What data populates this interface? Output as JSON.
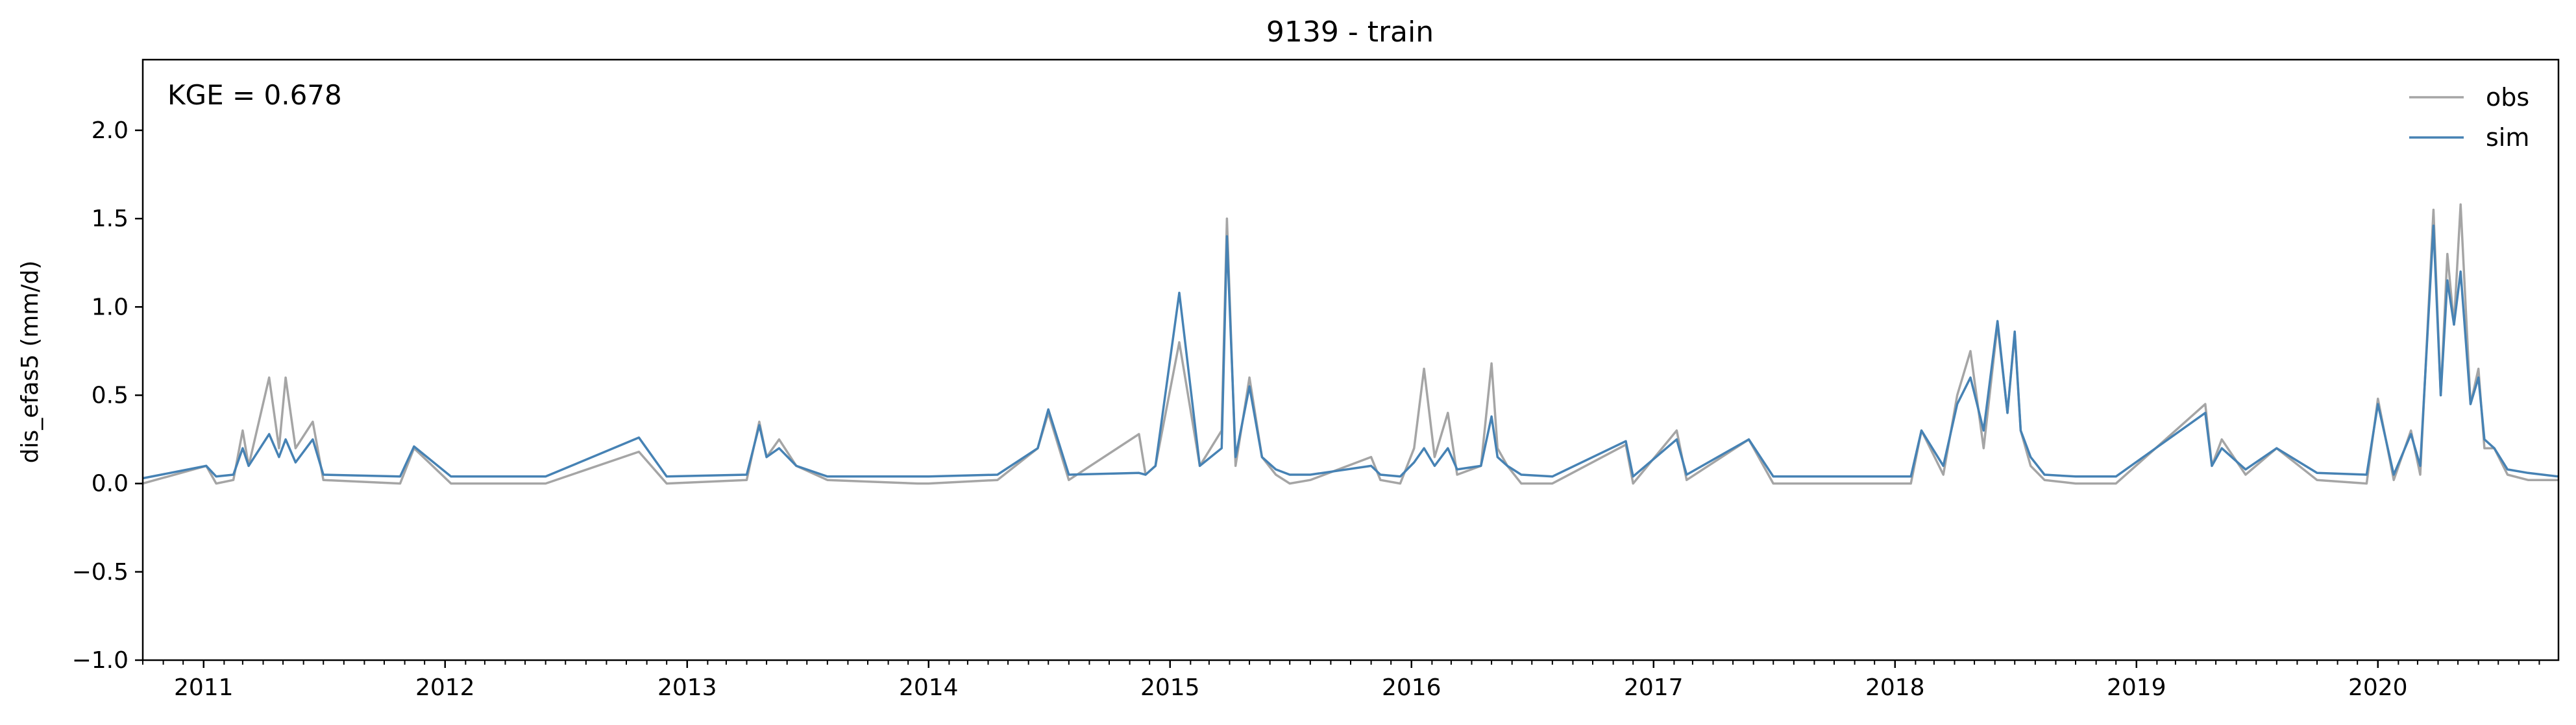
{
  "chart_data": {
    "type": "line",
    "title": "9139 - train",
    "xlabel": "",
    "ylabel": "dis_efas5 (mm/d)",
    "xlim": [
      "2010-10-01",
      "2020-09-30"
    ],
    "ylim": [
      -1.0,
      2.4
    ],
    "yticks": [
      -1.0,
      -0.5,
      0.0,
      0.5,
      1.0,
      1.5,
      2.0
    ],
    "ytick_labels": [
      "−1.0",
      "−0.5",
      "0.0",
      "0.5",
      "1.0",
      "1.5",
      "2.0"
    ],
    "xticks": [
      "2011-01-01",
      "2012-01-01",
      "2013-01-01",
      "2014-01-01",
      "2015-01-01",
      "2016-01-01",
      "2017-01-01",
      "2018-01-01",
      "2019-01-01",
      "2020-01-01"
    ],
    "xtick_labels": [
      "2011",
      "2012",
      "2013",
      "2014",
      "2015",
      "2016",
      "2017",
      "2018",
      "2019",
      "2020"
    ],
    "grid": false,
    "legend_position": "top-right",
    "annotation": "KGE = 0.678",
    "series": [
      {
        "name": "obs",
        "color": "#a5a5a5",
        "x": [
          "2010-10-01",
          "2011-01-05",
          "2011-01-20",
          "2011-02-15",
          "2011-03-01",
          "2011-03-10",
          "2011-04-10",
          "2011-04-25",
          "2011-05-05",
          "2011-05-20",
          "2011-06-15",
          "2011-07-01",
          "2011-10-25",
          "2011-11-15",
          "2012-01-10",
          "2012-06-01",
          "2012-10-20",
          "2012-12-01",
          "2013-04-01",
          "2013-04-20",
          "2013-05-01",
          "2013-05-20",
          "2013-06-15",
          "2013-08-01",
          "2013-12-15",
          "2014-01-01",
          "2014-04-15",
          "2014-06-15",
          "2014-07-01",
          "2014-08-01",
          "2014-11-15",
          "2014-11-25",
          "2014-12-10",
          "2015-01-15",
          "2015-02-15",
          "2015-03-20",
          "2015-03-28",
          "2015-04-10",
          "2015-05-01",
          "2015-05-20",
          "2015-06-10",
          "2015-07-01",
          "2015-08-01",
          "2015-11-01",
          "2015-11-15",
          "2015-12-15",
          "2016-01-05",
          "2016-01-20",
          "2016-02-05",
          "2016-02-25",
          "2016-03-10",
          "2016-04-15",
          "2016-05-01",
          "2016-05-10",
          "2016-05-25",
          "2016-06-15",
          "2016-08-01",
          "2016-11-20",
          "2016-12-01",
          "2017-02-05",
          "2017-02-20",
          "2017-05-25",
          "2017-07-01",
          "2017-09-01",
          "2017-12-01",
          "2018-01-25",
          "2018-02-10",
          "2018-03-15",
          "2018-04-05",
          "2018-04-25",
          "2018-05-15",
          "2018-06-05",
          "2018-06-20",
          "2018-07-01",
          "2018-07-10",
          "2018-07-25",
          "2018-08-15",
          "2018-10-01",
          "2018-12-01",
          "2019-04-15",
          "2019-04-25",
          "2019-05-10",
          "2019-06-15",
          "2019-08-01",
          "2019-10-01",
          "2019-12-15",
          "2020-01-01",
          "2020-01-25",
          "2020-02-20",
          "2020-03-05",
          "2020-03-25",
          "2020-04-05",
          "2020-04-15",
          "2020-04-25",
          "2020-05-05",
          "2020-05-20",
          "2020-06-01",
          "2020-06-10",
          "2020-06-25",
          "2020-07-15",
          "2020-08-15",
          "2020-09-30"
        ],
        "values": [
          0.0,
          0.1,
          0.0,
          0.02,
          0.3,
          0.1,
          0.6,
          0.2,
          0.6,
          0.2,
          0.35,
          0.02,
          0.0,
          0.2,
          0.0,
          0.0,
          0.18,
          0.0,
          0.02,
          0.35,
          0.15,
          0.25,
          0.1,
          0.02,
          0.0,
          0.0,
          0.02,
          0.2,
          0.4,
          0.02,
          0.28,
          0.05,
          0.1,
          0.8,
          0.1,
          0.3,
          1.5,
          0.1,
          0.6,
          0.15,
          0.05,
          0.0,
          0.02,
          0.15,
          0.02,
          0.0,
          0.2,
          0.65,
          0.15,
          0.4,
          0.05,
          0.1,
          0.68,
          0.2,
          0.1,
          0.0,
          0.0,
          0.22,
          0.0,
          0.3,
          0.02,
          0.25,
          0.0,
          0.0,
          0.0,
          0.0,
          0.3,
          0.05,
          0.5,
          0.75,
          0.2,
          0.9,
          0.4,
          0.85,
          0.3,
          0.1,
          0.02,
          0.0,
          0.0,
          0.45,
          0.1,
          0.25,
          0.05,
          0.2,
          0.02,
          0.0,
          0.48,
          0.02,
          0.3,
          0.05,
          1.55,
          0.5,
          1.3,
          0.9,
          1.58,
          0.45,
          0.65,
          0.2,
          0.2,
          0.05,
          0.02,
          0.02
        ]
      },
      {
        "name": "sim",
        "color": "#4682b4",
        "x": [
          "2010-10-01",
          "2011-01-05",
          "2011-01-20",
          "2011-02-15",
          "2011-03-01",
          "2011-03-10",
          "2011-04-10",
          "2011-04-25",
          "2011-05-05",
          "2011-05-20",
          "2011-06-15",
          "2011-07-01",
          "2011-10-25",
          "2011-11-15",
          "2012-01-10",
          "2012-06-01",
          "2012-10-20",
          "2012-12-01",
          "2013-04-01",
          "2013-04-20",
          "2013-05-01",
          "2013-05-20",
          "2013-06-15",
          "2013-08-01",
          "2013-12-15",
          "2014-01-01",
          "2014-04-15",
          "2014-06-15",
          "2014-07-01",
          "2014-08-01",
          "2014-11-15",
          "2014-11-25",
          "2014-12-10",
          "2015-01-15",
          "2015-02-15",
          "2015-03-20",
          "2015-03-28",
          "2015-04-10",
          "2015-05-01",
          "2015-05-20",
          "2015-06-10",
          "2015-07-01",
          "2015-08-01",
          "2015-11-01",
          "2015-11-15",
          "2015-12-15",
          "2016-01-05",
          "2016-01-20",
          "2016-02-05",
          "2016-02-25",
          "2016-03-10",
          "2016-04-15",
          "2016-05-01",
          "2016-05-10",
          "2016-05-25",
          "2016-06-15",
          "2016-08-01",
          "2016-11-20",
          "2016-12-01",
          "2017-02-05",
          "2017-02-20",
          "2017-05-25",
          "2017-07-01",
          "2017-09-01",
          "2017-12-01",
          "2018-01-25",
          "2018-02-10",
          "2018-03-15",
          "2018-04-05",
          "2018-04-25",
          "2018-05-15",
          "2018-06-05",
          "2018-06-20",
          "2018-07-01",
          "2018-07-10",
          "2018-07-25",
          "2018-08-15",
          "2018-10-01",
          "2018-12-01",
          "2019-04-15",
          "2019-04-25",
          "2019-05-10",
          "2019-06-15",
          "2019-08-01",
          "2019-10-01",
          "2019-12-15",
          "2020-01-01",
          "2020-01-25",
          "2020-02-20",
          "2020-03-05",
          "2020-03-25",
          "2020-04-05",
          "2020-04-15",
          "2020-04-25",
          "2020-05-05",
          "2020-05-20",
          "2020-06-01",
          "2020-06-10",
          "2020-06-25",
          "2020-07-15",
          "2020-08-15",
          "2020-09-30"
        ],
        "values": [
          0.03,
          0.1,
          0.04,
          0.05,
          0.2,
          0.1,
          0.28,
          0.15,
          0.25,
          0.12,
          0.25,
          0.05,
          0.04,
          0.21,
          0.04,
          0.04,
          0.26,
          0.04,
          0.05,
          0.33,
          0.15,
          0.2,
          0.1,
          0.04,
          0.04,
          0.04,
          0.05,
          0.2,
          0.42,
          0.05,
          0.06,
          0.05,
          0.1,
          1.08,
          0.1,
          0.2,
          1.4,
          0.15,
          0.55,
          0.15,
          0.08,
          0.05,
          0.05,
          0.1,
          0.05,
          0.04,
          0.12,
          0.2,
          0.1,
          0.2,
          0.08,
          0.1,
          0.38,
          0.15,
          0.1,
          0.05,
          0.04,
          0.24,
          0.04,
          0.25,
          0.05,
          0.25,
          0.04,
          0.04,
          0.04,
          0.04,
          0.3,
          0.1,
          0.45,
          0.6,
          0.3,
          0.92,
          0.4,
          0.86,
          0.3,
          0.15,
          0.05,
          0.04,
          0.04,
          0.4,
          0.1,
          0.2,
          0.08,
          0.2,
          0.06,
          0.05,
          0.45,
          0.05,
          0.28,
          0.1,
          1.46,
          0.5,
          1.15,
          0.9,
          1.2,
          0.45,
          0.6,
          0.25,
          0.2,
          0.08,
          0.06,
          0.04
        ]
      }
    ]
  }
}
